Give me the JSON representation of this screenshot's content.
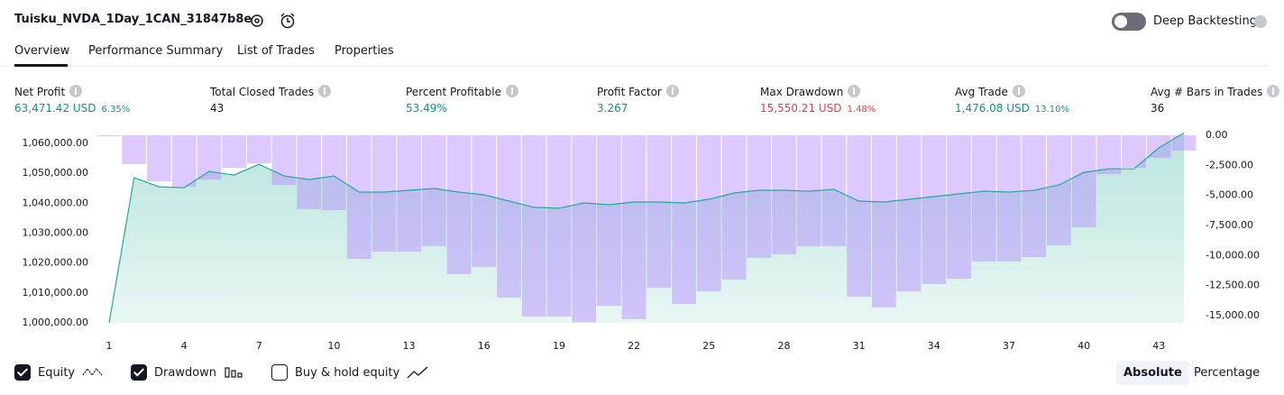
{
  "header": {
    "title": "Tuisku_NVDA_1Day_1CAN_31847b8e",
    "toggle_label": "Deep Backtesting"
  },
  "tabs": [
    "Overview",
    "Performance Summary",
    "List of Trades",
    "Properties"
  ],
  "metrics": [
    {
      "label": "Net Profit",
      "value": "63,471.42 USD",
      "pct": "6.35%",
      "tone": "up"
    },
    {
      "label": "Total Closed Trades",
      "value": "43",
      "tone": "plain"
    },
    {
      "label": "Percent Profitable",
      "value": "53.49%",
      "tone": "up"
    },
    {
      "label": "Profit Factor",
      "value": "3.267",
      "tone": "up"
    },
    {
      "label": "Max Drawdown",
      "value": "15,550.21 USD",
      "pct": "1.48%",
      "tone": "down"
    },
    {
      "label": "Avg Trade",
      "value": "1,476.08 USD",
      "pct": "13.10%",
      "tone": "up"
    },
    {
      "label": "Avg # Bars in Trades",
      "value": "36",
      "tone": "plain"
    }
  ],
  "chart_data": {
    "type": "combo",
    "x": [
      1,
      2,
      3,
      4,
      5,
      6,
      7,
      8,
      9,
      10,
      11,
      12,
      13,
      14,
      15,
      16,
      17,
      18,
      19,
      20,
      21,
      22,
      23,
      24,
      25,
      26,
      27,
      28,
      29,
      30,
      31,
      32,
      33,
      34,
      35,
      36,
      37,
      38,
      39,
      40,
      41,
      42,
      43,
      44
    ],
    "xlim": [
      1,
      44
    ],
    "xticks": [
      1,
      4,
      7,
      10,
      13,
      16,
      19,
      22,
      25,
      28,
      31,
      34,
      37,
      40,
      43
    ],
    "ylim": [
      1000000,
      1062700
    ],
    "yticks": [
      {
        "value": 1000000,
        "label": "1,000,000.00"
      },
      {
        "value": 1010000,
        "label": "1,010,000.00"
      },
      {
        "value": 1020000,
        "label": "1,020,000.00"
      },
      {
        "value": 1030000,
        "label": "1,030,000.00"
      },
      {
        "value": 1040000,
        "label": "1,040,000.00"
      },
      {
        "value": 1050000,
        "label": "1,050,000.00"
      },
      {
        "value": 1060000,
        "label": "1,060,000.00"
      }
    ],
    "y2lim": [
      -15600,
      0
    ],
    "y2ticks": [
      {
        "value": 0,
        "label": "0.00"
      },
      {
        "value": -2500,
        "label": "-2,500.00"
      },
      {
        "value": -5000,
        "label": "-5,000.00"
      },
      {
        "value": -7500,
        "label": "-7,500.00"
      },
      {
        "value": -10000,
        "label": "-10,000.00"
      },
      {
        "value": -12500,
        "label": "-12,500.00"
      },
      {
        "value": -15000,
        "label": "-15,000.00"
      }
    ],
    "series": [
      {
        "name": "Equity",
        "color": "#22ab94",
        "checked": true,
        "values": [
          1000000,
          1048500,
          1045500,
          1045200,
          1050600,
          1049400,
          1053000,
          1049100,
          1047900,
          1049100,
          1043700,
          1043700,
          1044300,
          1044900,
          1043700,
          1042800,
          1040700,
          1038600,
          1038300,
          1040100,
          1039500,
          1040400,
          1040400,
          1040100,
          1041300,
          1043400,
          1044300,
          1044300,
          1044000,
          1044600,
          1040700,
          1040400,
          1041300,
          1042200,
          1043100,
          1044000,
          1043700,
          1044300,
          1046100,
          1050300,
          1051500,
          1051500,
          1058500,
          1063471.42
        ]
      },
      {
        "name": "Drawdown",
        "color": "#b388ff",
        "axis": "y2",
        "checked": true,
        "values": [
          0,
          -2400,
          -3825,
          -4275,
          -3675,
          -2700,
          -2325,
          -4125,
          -6150,
          -6225,
          -10275,
          -9675,
          -9675,
          -9225,
          -11550,
          -10950,
          -13500,
          -15075,
          -15075,
          -15550.21,
          -14175,
          -15300,
          -12675,
          -14025,
          -12975,
          -12000,
          -10200,
          -9900,
          -9225,
          -9225,
          -13425,
          -14325,
          -12975,
          -12375,
          -11925,
          -10500,
          -10500,
          -10125,
          -9150,
          -7650,
          -3225,
          -2700,
          -1875,
          -1275
        ]
      }
    ]
  },
  "extra_legend": {
    "label": "Buy & hold equity",
    "checked": false
  },
  "modes": [
    {
      "label": "Absolute",
      "active": true
    },
    {
      "label": "Percentage",
      "active": false
    }
  ]
}
